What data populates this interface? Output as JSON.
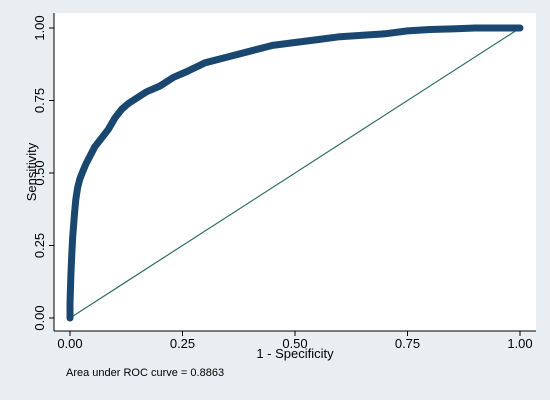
{
  "chart_data": {
    "type": "line",
    "xlabel": "1 - Specificity",
    "ylabel": "Sensitivity",
    "xlim": [
      0,
      1
    ],
    "ylim": [
      0,
      1
    ],
    "x_ticks": [
      "0.00",
      "0.25",
      "0.50",
      "0.75",
      "1.00"
    ],
    "y_ticks": [
      "0.00",
      "0.25",
      "0.50",
      "0.75",
      "1.00"
    ],
    "grid": false,
    "note": "Area under ROC curve = 0.8863",
    "colors": {
      "curve": "#1a476f",
      "reference": "#2d6d66",
      "plot_bg": "#ffffff",
      "outer_bg": "#e8eef2"
    },
    "series": [
      {
        "role": "roc-curve",
        "x": [
          0,
          0,
          0.002,
          0.004,
          0.006,
          0.008,
          0.01,
          0.013,
          0.017,
          0.022,
          0.027,
          0.035,
          0.045,
          0.055,
          0.07,
          0.085,
          0.1,
          0.115,
          0.13,
          0.15,
          0.17,
          0.2,
          0.23,
          0.26,
          0.3,
          0.35,
          0.4,
          0.45,
          0.5,
          0.55,
          0.6,
          0.65,
          0.7,
          0.75,
          0.8,
          0.85,
          0.9,
          0.95,
          1.0
        ],
        "y": [
          0,
          0.05,
          0.15,
          0.22,
          0.28,
          0.32,
          0.36,
          0.41,
          0.45,
          0.48,
          0.5,
          0.53,
          0.56,
          0.59,
          0.62,
          0.65,
          0.69,
          0.72,
          0.74,
          0.76,
          0.78,
          0.8,
          0.83,
          0.85,
          0.88,
          0.9,
          0.92,
          0.94,
          0.95,
          0.96,
          0.97,
          0.975,
          0.98,
          0.99,
          0.995,
          0.997,
          1.0,
          1.0,
          1.0
        ]
      },
      {
        "role": "reference-line",
        "x": [
          0,
          1
        ],
        "y": [
          0,
          1
        ]
      }
    ]
  }
}
